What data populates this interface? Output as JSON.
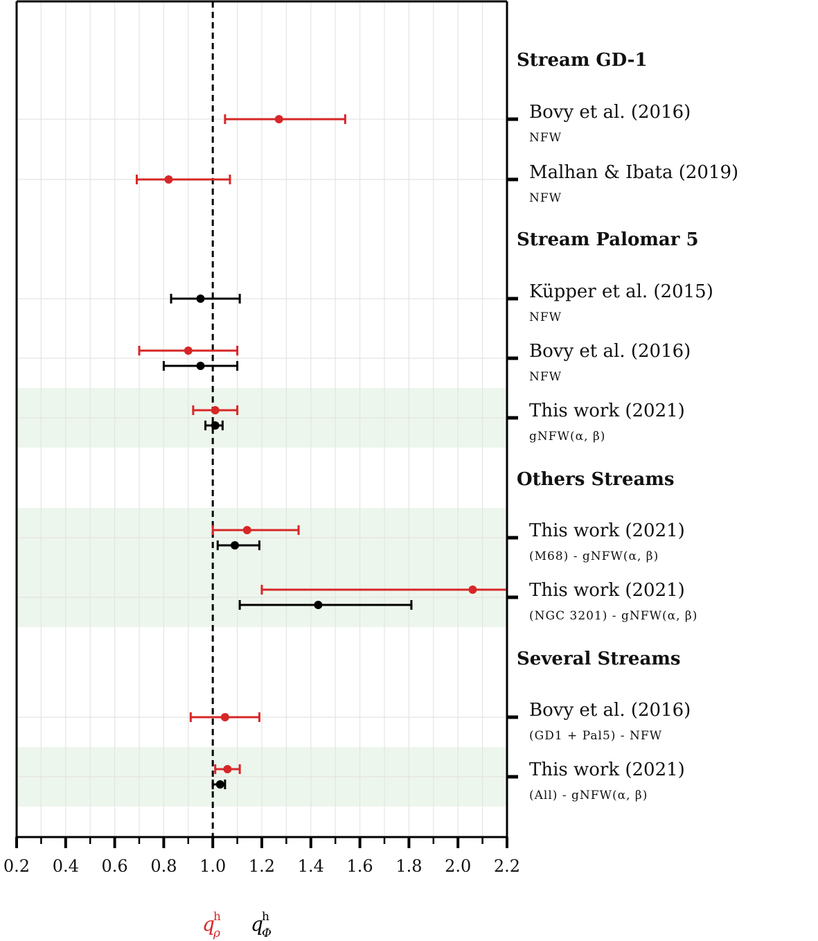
{
  "chart_data": {
    "type": "errorbar-forest",
    "xlim": [
      0.2,
      2.2
    ],
    "x_ticks": [
      "0.2",
      "0.4",
      "0.6",
      "0.8",
      "1.0",
      "1.2",
      "1.4",
      "1.6",
      "1.8",
      "2.0",
      "2.2"
    ],
    "reference_line": 1.0,
    "colors": {
      "q_rho": "#d62728",
      "q_phi": "#000000",
      "highlight": "#edf6ec"
    },
    "axis_labels": {
      "q_rho": {
        "base": "q",
        "sup": "h",
        "sub": "ρ"
      },
      "q_phi": {
        "base": "q",
        "sup": "h",
        "sub": "Φ"
      }
    },
    "groups": [
      {
        "header": "Stream GD-1",
        "entries": [
          {
            "label": "Bovy et al. (2016)",
            "sublabel": "NFW",
            "highlight": false,
            "q_rho": {
              "value": 1.27,
              "low": 1.05,
              "high": 1.54
            },
            "q_phi": null
          },
          {
            "label": "Malhan & Ibata (2019)",
            "sublabel": "NFW",
            "highlight": false,
            "q_rho": {
              "value": 0.82,
              "low": 0.69,
              "high": 1.07
            },
            "q_phi": null
          }
        ]
      },
      {
        "header": "Stream Palomar 5",
        "entries": [
          {
            "label": "Küpper et al. (2015)",
            "sublabel": "NFW",
            "highlight": false,
            "q_rho": null,
            "q_phi": {
              "value": 0.95,
              "low": 0.83,
              "high": 1.11
            }
          },
          {
            "label": "Bovy et al. (2016)",
            "sublabel": "NFW",
            "highlight": false,
            "q_rho": {
              "value": 0.9,
              "low": 0.7,
              "high": 1.1
            },
            "q_phi": {
              "value": 0.95,
              "low": 0.8,
              "high": 1.1
            }
          },
          {
            "label": "This work (2021)",
            "sublabel": "gNFW(α, β)",
            "highlight": true,
            "q_rho": {
              "value": 1.01,
              "low": 0.92,
              "high": 1.1
            },
            "q_phi": {
              "value": 1.01,
              "low": 0.97,
              "high": 1.04
            }
          }
        ]
      },
      {
        "header": "Others Streams",
        "entries": [
          {
            "label": "This work (2021)",
            "sublabel": "(M68) - gNFW(α, β)",
            "highlight": true,
            "q_rho": {
              "value": 1.14,
              "low": 1.0,
              "high": 1.35
            },
            "q_phi": {
              "value": 1.09,
              "low": 1.02,
              "high": 1.19
            }
          },
          {
            "label": "This work (2021)",
            "sublabel": "(NGC 3201) - gNFW(α, β)",
            "highlight": true,
            "q_rho": {
              "value": 2.06,
              "low": 1.2,
              "high": 2.2
            },
            "q_phi": {
              "value": 1.43,
              "low": 1.11,
              "high": 1.81
            }
          }
        ]
      },
      {
        "header": "Several Streams",
        "entries": [
          {
            "label": "Bovy et al. (2016)",
            "sublabel": "(GD1 + Pal5) - NFW",
            "highlight": false,
            "q_rho": {
              "value": 1.05,
              "low": 0.91,
              "high": 1.19
            },
            "q_phi": null
          },
          {
            "label": "This work (2021)",
            "sublabel": "(All) - gNFW(α, β)",
            "highlight": true,
            "q_rho": {
              "value": 1.06,
              "low": 1.01,
              "high": 1.11
            },
            "q_phi": {
              "value": 1.03,
              "low": 1.0,
              "high": 1.05
            }
          }
        ]
      }
    ]
  }
}
